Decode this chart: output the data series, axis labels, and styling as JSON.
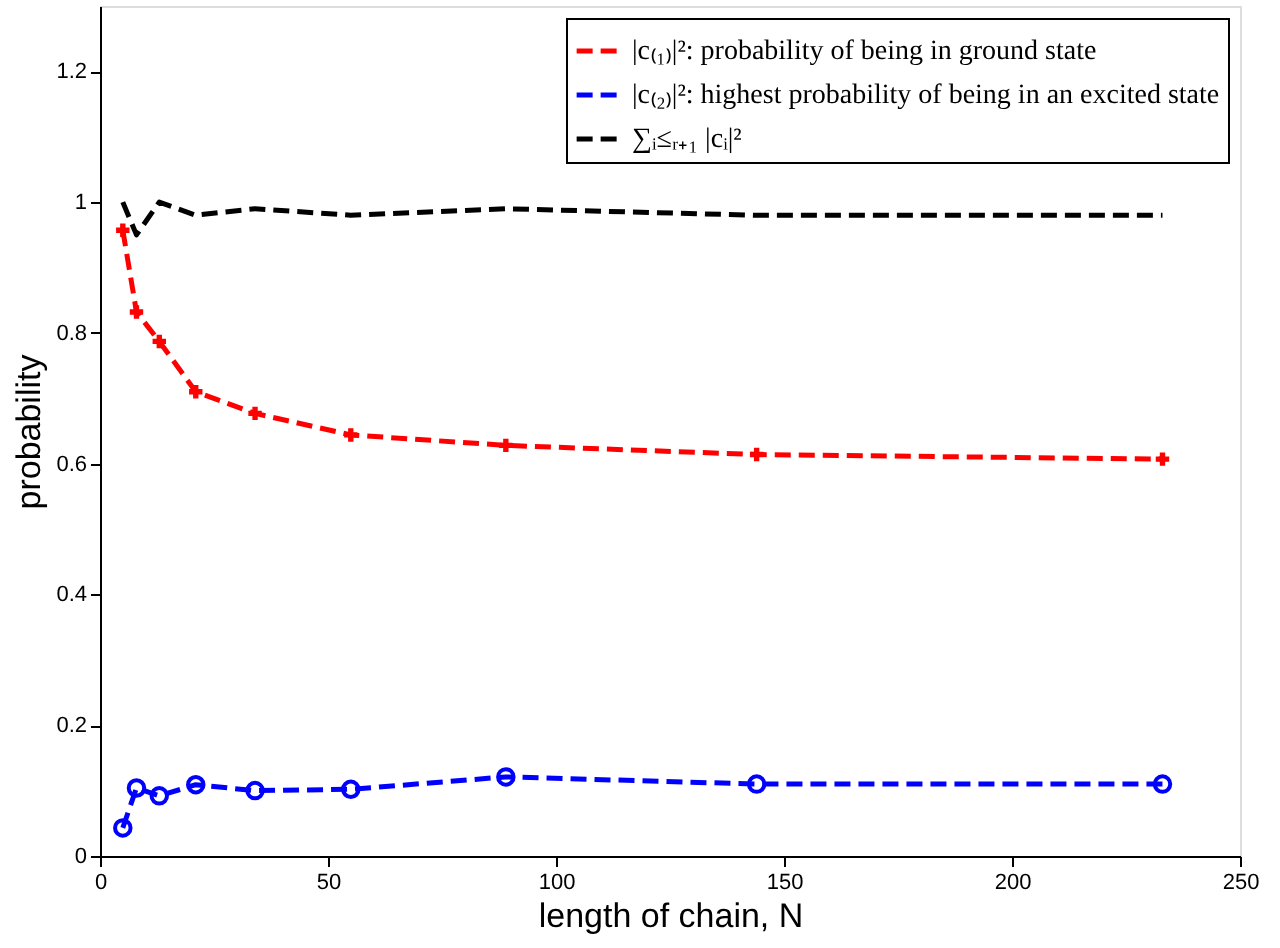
{
  "chart_data": {
    "type": "line",
    "xlabel": "length of chain, N",
    "ylabel": "probability",
    "x": [
      5,
      8,
      13,
      21,
      34,
      55,
      89,
      144,
      233
    ],
    "series": [
      {
        "name": "|c₍₁₎|²: probability of being in ground state",
        "color": "#ff0000",
        "marker": "cross",
        "line_style": "dashed",
        "values": [
          0.957,
          0.832,
          0.787,
          0.71,
          0.677,
          0.644,
          0.628,
          0.614,
          0.607
        ]
      },
      {
        "name": "|c₍₂₎|²: highest probability of being in an excited state",
        "color": "#0000ff",
        "marker": "circle",
        "line_style": "dashed",
        "values": [
          0.043,
          0.104,
          0.092,
          0.109,
          0.1,
          0.102,
          0.121,
          0.11,
          0.11
        ]
      },
      {
        "name": "∑ᵢ≤ᵣ₊₁ |cᵢ|²",
        "color": "#000000",
        "marker": "none",
        "line_style": "dashed",
        "values": [
          1.0,
          0.95,
          1.0,
          0.98,
          0.99,
          0.98,
          0.99,
          0.98,
          0.98
        ]
      }
    ],
    "xlim": [
      0,
      250
    ],
    "xticks": [
      0,
      50,
      100,
      150,
      200,
      250
    ],
    "ylim": [
      0,
      1.3
    ],
    "yticks": [
      0,
      0.2,
      0.4,
      0.6,
      0.8,
      1,
      1.2
    ],
    "grid": false,
    "legend": "top right"
  }
}
